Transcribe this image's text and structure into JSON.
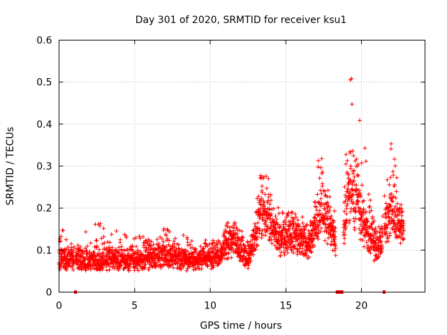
{
  "chart_data": {
    "type": "scatter",
    "title": "Day 301 of 2020, SRMTID for receiver ksu1",
    "xlabel": "GPS time / hours",
    "ylabel": "SRMTID / TECUs",
    "xlim": [
      0,
      24.2
    ],
    "ylim": [
      0,
      0.6
    ],
    "xticks": [
      0,
      5,
      10,
      15,
      20
    ],
    "yticks": [
      0,
      0.1,
      0.2,
      0.3,
      0.4,
      0.5,
      0.6
    ],
    "xtick_labels": [
      "0",
      "5",
      "10",
      "15",
      "20"
    ],
    "ytick_labels": [
      "0",
      "0.1",
      "0.2",
      "0.3",
      "0.4",
      "0.5",
      "0.6"
    ],
    "grid": true,
    "marker": "+",
    "color": "#ff0000",
    "series": [
      {
        "name": "SRMTID",
        "description": "dense scatter of SRMTID values every ~30 s",
        "envelope": [
          {
            "x": 0.0,
            "base": 0.06,
            "spread": 0.05,
            "max": 0.18
          },
          {
            "x": 1.0,
            "base": 0.06,
            "spread": 0.04,
            "max": 0.15
          },
          {
            "x": 2.5,
            "base": 0.06,
            "spread": 0.04,
            "max": 0.17
          },
          {
            "x": 5.0,
            "base": 0.06,
            "spread": 0.04,
            "max": 0.13
          },
          {
            "x": 7.0,
            "base": 0.07,
            "spread": 0.05,
            "max": 0.16
          },
          {
            "x": 9.0,
            "base": 0.06,
            "spread": 0.04,
            "max": 0.12
          },
          {
            "x": 10.5,
            "base": 0.07,
            "spread": 0.05,
            "max": 0.14
          },
          {
            "x": 11.5,
            "base": 0.1,
            "spread": 0.06,
            "max": 0.18
          },
          {
            "x": 12.5,
            "base": 0.06,
            "spread": 0.04,
            "max": 0.12
          },
          {
            "x": 13.5,
            "base": 0.16,
            "spread": 0.1,
            "max": 0.31
          },
          {
            "x": 14.5,
            "base": 0.1,
            "spread": 0.07,
            "max": 0.2
          },
          {
            "x": 15.5,
            "base": 0.11,
            "spread": 0.07,
            "max": 0.19
          },
          {
            "x": 16.5,
            "base": 0.09,
            "spread": 0.06,
            "max": 0.18
          },
          {
            "x": 17.3,
            "base": 0.16,
            "spread": 0.1,
            "max": 0.35
          },
          {
            "x": 18.5,
            "base": 0.08,
            "spread": 0.05,
            "max": 0.15
          },
          {
            "x": 19.3,
            "base": 0.2,
            "spread": 0.15,
            "max": 0.54
          },
          {
            "x": 20.0,
            "base": 0.14,
            "spread": 0.1,
            "max": 0.4
          },
          {
            "x": 21.0,
            "base": 0.08,
            "spread": 0.05,
            "max": 0.17
          },
          {
            "x": 22.0,
            "base": 0.16,
            "spread": 0.1,
            "max": 0.38
          },
          {
            "x": 22.8,
            "base": 0.12,
            "spread": 0.06,
            "max": 0.17
          }
        ],
        "x_range": [
          0,
          22.8
        ]
      }
    ],
    "outages": [
      {
        "x_start": 1.0,
        "x_end": 1.1
      },
      {
        "x_start": 18.3,
        "x_end": 18.8
      },
      {
        "x_start": 21.4,
        "x_end": 21.5
      }
    ]
  }
}
